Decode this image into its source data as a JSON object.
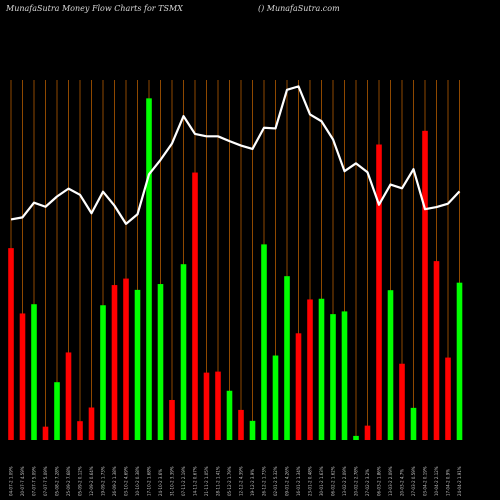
{
  "header": {
    "title": "MunafaSutra  Money Flow  Charts for TSMX",
    "site": "() MunafaSutra.com"
  },
  "colors": {
    "background": "#000000",
    "grid": "#b35a00",
    "up": "#00ff00",
    "down": "#ff0000",
    "line": "#ffffff"
  },
  "chart_data": {
    "type": "bar",
    "title": "",
    "xlabel": "",
    "ylabel": "",
    "ylim": [
      0,
      100
    ],
    "grid": true,
    "legend": "none",
    "bars": [
      {
        "label": "04-07-2 1.09%",
        "value": 56.1,
        "dir": "down"
      },
      {
        "label": "20-07-7 4.59%",
        "value": 37,
        "dir": "down"
      },
      {
        "label": "07-07-7 5.09%",
        "value": 39.7,
        "dir": "up"
      },
      {
        "label": "07-07-7 5.09%",
        "value": 3.9,
        "dir": "down"
      },
      {
        "label": "05-08-2 7.28%",
        "value": 16.9,
        "dir": "up"
      },
      {
        "label": "25-09-2 7.68%",
        "value": 25.6,
        "dir": "down"
      },
      {
        "label": "05-09-2 0.12%",
        "value": 5.5,
        "dir": "down"
      },
      {
        "label": "12-09-2 0.64%",
        "value": 9.5,
        "dir": "down"
      },
      {
        "label": "19-09-2 1.73%",
        "value": 39.4,
        "dir": "up"
      },
      {
        "label": "26-09-2 1.38%",
        "value": 45.3,
        "dir": "down"
      },
      {
        "label": "03-10-2 4.69%",
        "value": 47.2,
        "dir": "down"
      },
      {
        "label": "10-10-2 0.38%",
        "value": 43.9,
        "dir": "up"
      },
      {
        "label": "17-10-2 1.68%",
        "value": 99.9,
        "dir": "up"
      },
      {
        "label": "24-10-2 3.6%",
        "value": 45.6,
        "dir": "up"
      },
      {
        "label": "31-10-2 3.39%",
        "value": 11.7,
        "dir": "down"
      },
      {
        "label": "07-11-2 2.19%",
        "value": 51.4,
        "dir": "up"
      },
      {
        "label": "14-11-2 0.67%",
        "value": 78.2,
        "dir": "down"
      },
      {
        "label": "21-11-2 1.05%",
        "value": 19.7,
        "dir": "down"
      },
      {
        "label": "28-11-2 1.41%",
        "value": 20,
        "dir": "down"
      },
      {
        "label": "05-12-2 1.79%",
        "value": 14.4,
        "dir": "up"
      },
      {
        "label": "12-12-2 4.39%",
        "value": 8.8,
        "dir": "down"
      },
      {
        "label": "19-12-2 3.9%",
        "value": 5.6,
        "dir": "up"
      },
      {
        "label": "26-12-2 1.73%",
        "value": 57.2,
        "dir": "up"
      },
      {
        "label": "02-01-2 5.32%",
        "value": 24.7,
        "dir": "up"
      },
      {
        "label": "09-01-2 4.26%",
        "value": 47.9,
        "dir": "up"
      },
      {
        "label": "16-01-2 1.34%",
        "value": 31.2,
        "dir": "down"
      },
      {
        "label": "23-01-2 0.48%",
        "value": 41.1,
        "dir": "down"
      },
      {
        "label": "30-01-2 1.63%",
        "value": 41.3,
        "dir": "up"
      },
      {
        "label": "06-02-2 1.62%",
        "value": 36.8,
        "dir": "up"
      },
      {
        "label": "13-02-2 2.09%",
        "value": 37.6,
        "dir": "up"
      },
      {
        "label": "20-02-2 2.78%",
        "value": 1.2,
        "dir": "up"
      },
      {
        "label": "27-02-2 3.2%",
        "value": 4.2,
        "dir": "down"
      },
      {
        "label": "06-03-2 1.86%",
        "value": 86.4,
        "dir": "down"
      },
      {
        "label": "13-03-2 2.09%",
        "value": 43.8,
        "dir": "up"
      },
      {
        "label": "20-03-2 4.7%",
        "value": 22.3,
        "dir": "down"
      },
      {
        "label": "27-03-2 0.59%",
        "value": 9.4,
        "dir": "up"
      },
      {
        "label": "03-04-2 0.19%",
        "value": 90.4,
        "dir": "down"
      },
      {
        "label": "10-04-2 2.12%",
        "value": 52.3,
        "dir": "down"
      },
      {
        "label": "17-04-2 0.9%",
        "value": 24.1,
        "dir": "down"
      },
      {
        "label": "24-04-2 1.91%",
        "value": 46,
        "dir": "up"
      }
    ],
    "line": [
      64.5,
      65.1,
      69.4,
      68.2,
      71.2,
      73.5,
      71.7,
      66.3,
      72.6,
      68.5,
      63.2,
      66,
      77.7,
      81.9,
      86.7,
      94.7,
      89.5,
      88.8,
      88.8,
      87.4,
      86.1,
      85.1,
      91.3,
      91.1,
      102.4,
      103.4,
      95.2,
      93.2,
      87.9,
      78.6,
      80.9,
      78.3,
      68.8,
      74.7,
      73.6,
      79.2,
      67.5,
      68.1,
      69.1,
      72.7
    ]
  }
}
